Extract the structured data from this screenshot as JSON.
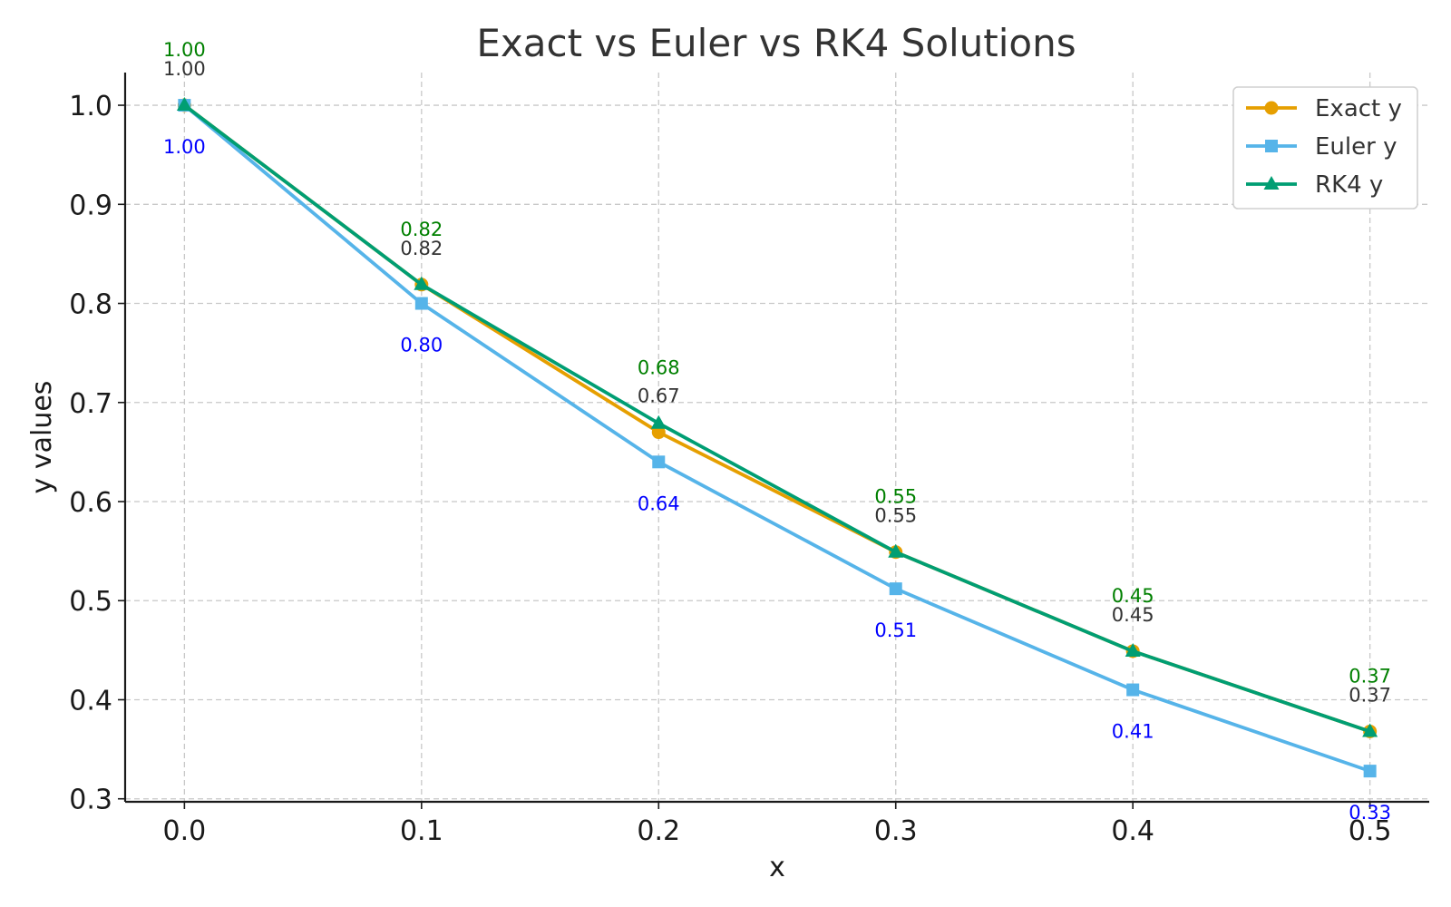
{
  "chart_data": {
    "type": "line",
    "title": "Exact vs Euler vs RK4 Solutions",
    "xlabel": "x",
    "ylabel": "y values",
    "x": [
      0.0,
      0.1,
      0.2,
      0.3,
      0.4,
      0.5
    ],
    "xticks": [
      "0.0",
      "0.1",
      "0.2",
      "0.3",
      "0.4",
      "0.5"
    ],
    "yticks": [
      "0.3",
      "0.4",
      "0.5",
      "0.6",
      "0.7",
      "0.8",
      "0.9",
      "1.0"
    ],
    "xlim": [
      -0.025,
      0.525
    ],
    "ylim": [
      0.297,
      1.033
    ],
    "grid": true,
    "legend_position": "top-right",
    "series": [
      {
        "name": "Exact y",
        "color": "#E69F00",
        "marker": "circle",
        "values": [
          1.0,
          0.819,
          0.67,
          0.549,
          0.449,
          0.368
        ],
        "labels": [
          "1.00",
          "0.82",
          "0.67",
          "0.55",
          "0.45",
          "0.37"
        ],
        "label_color": "#333333",
        "label_position": "above"
      },
      {
        "name": "Euler y",
        "color": "#56B4E9",
        "marker": "square",
        "values": [
          1.0,
          0.8,
          0.64,
          0.512,
          0.41,
          0.328
        ],
        "labels": [
          "1.00",
          "0.80",
          "0.64",
          "0.51",
          "0.41",
          "0.33"
        ],
        "label_color": "#0000ff",
        "label_position": "below"
      },
      {
        "name": "RK4 y",
        "color": "#009E73",
        "marker": "triangle",
        "values": [
          1.0,
          0.819,
          0.679,
          0.549,
          0.449,
          0.368
        ],
        "labels": [
          "1.00",
          "0.82",
          "0.68",
          "0.55",
          "0.45",
          "0.37"
        ],
        "label_color": "#008000",
        "label_position": "above-high"
      }
    ]
  }
}
